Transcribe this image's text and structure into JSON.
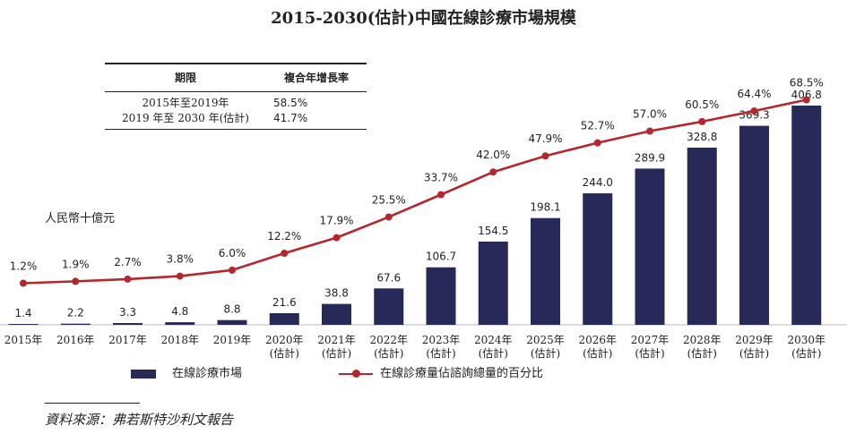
{
  "title": "2015-2030(估計)中國在線診療市場規模",
  "cagr_table": {
    "header_period": "期限",
    "header_rate": "複合年增長率",
    "rows": [
      {
        "period": "2015年至2019年",
        "rate": "58.5%"
      },
      {
        "period": "2019 年至 2030 年(估計)",
        "rate": "41.7%"
      }
    ]
  },
  "unit_label": "人民幣十億元",
  "legend": {
    "bar": "在線診療市場",
    "line": "在線診療量佔諮詢總量的百分比"
  },
  "source": "資料來源：弗若斯特沙利文報告",
  "colors": {
    "bar": "#272a58",
    "line": "#b5262d"
  },
  "chart_data": {
    "type": "bar",
    "categories": [
      "2015年",
      "2016年",
      "2017年",
      "2018年",
      "2019年",
      "2020年(估計)",
      "2021年(估計)",
      "2022年(估計)",
      "2023年(估計)",
      "2024年(估計)",
      "2025年(估計)",
      "2026年(估計)",
      "2027年(估計)",
      "2028年(估計)",
      "2029年(估計)",
      "2030年(估計)"
    ],
    "category_lines": [
      [
        "2015年"
      ],
      [
        "2016年"
      ],
      [
        "2017年"
      ],
      [
        "2018年"
      ],
      [
        "2019年"
      ],
      [
        "2020年",
        "(估計)"
      ],
      [
        "2021年",
        "(估計)"
      ],
      [
        "2022年",
        "(估計)"
      ],
      [
        "2023年",
        "(估計)"
      ],
      [
        "2024年",
        "(估計)"
      ],
      [
        "2025年",
        "(估計)"
      ],
      [
        "2026年",
        "(估計)"
      ],
      [
        "2027年",
        "(估計)"
      ],
      [
        "2028年",
        "(估計)"
      ],
      [
        "2029年",
        "(估計)"
      ],
      [
        "2030年",
        "(估計)"
      ]
    ],
    "series": [
      {
        "name": "在線診療市場",
        "type": "bar",
        "values": [
          1.4,
          2.2,
          3.3,
          4.8,
          8.8,
          21.6,
          38.8,
          67.6,
          106.7,
          154.5,
          198.1,
          244.0,
          289.9,
          328.8,
          369.3,
          406.8
        ],
        "labels": [
          "1.4",
          "2.2",
          "3.3",
          "4.8",
          "8.8",
          "21.6",
          "38.8",
          "67.6",
          "106.7",
          "154.5",
          "198.1",
          "244.0",
          "289.9",
          "328.8",
          "369.3",
          "406.8"
        ]
      },
      {
        "name": "在線診療量佔諮詢總量的百分比",
        "type": "line",
        "values": [
          1.2,
          1.9,
          2.7,
          3.8,
          6.0,
          12.2,
          17.9,
          25.5,
          33.7,
          42.0,
          47.9,
          52.7,
          57.0,
          60.5,
          64.4,
          68.5
        ],
        "labels": [
          "1.2%",
          "1.9%",
          "2.7%",
          "3.8%",
          "6.0%",
          "12.2%",
          "17.9%",
          "25.5%",
          "33.7%",
          "42.0%",
          "47.9%",
          "52.7%",
          "57.0%",
          "60.5%",
          "64.4%",
          "68.5%"
        ]
      }
    ],
    "legend_position": "bottom"
  }
}
